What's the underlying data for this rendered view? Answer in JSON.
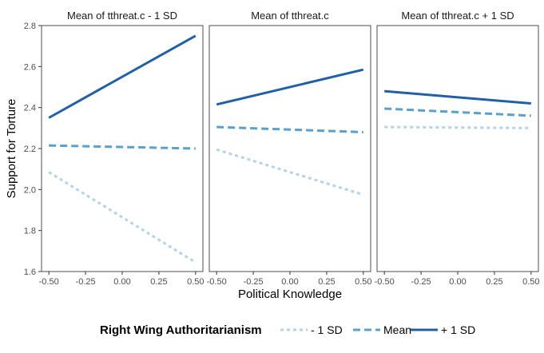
{
  "chart_data": {
    "type": "line",
    "xlabel": "Political Knowledge",
    "ylabel": "Support for Torture",
    "xlim": [
      -0.55,
      0.55
    ],
    "ylim": [
      1.6,
      2.8
    ],
    "x_ticks": [
      "-0.50",
      "-0.25",
      "0.00",
      "0.25",
      "0.50"
    ],
    "y_ticks": [
      "1.6",
      "1.8",
      "2.0",
      "2.2",
      "2.4",
      "2.6",
      "2.8"
    ],
    "legend": {
      "title": "Right Wing Authoritarianism",
      "position": "bottom",
      "entries": [
        "- 1 SD",
        "Mean",
        "+ 1 SD"
      ]
    },
    "colors": {
      "- 1 SD": "#b3d3e8",
      "Mean": "#5aa0cd",
      "+ 1 SD": "#2060a8"
    },
    "panels": [
      {
        "title": "Mean of tthreat.c - 1 SD",
        "x": [
          -0.5,
          0.5
        ],
        "series": [
          {
            "name": "- 1 SD",
            "values": [
              2.085,
              1.645
            ]
          },
          {
            "name": "Mean",
            "values": [
              2.215,
              2.2
            ]
          },
          {
            "name": "+ 1 SD",
            "values": [
              2.35,
              2.75
            ]
          }
        ]
      },
      {
        "title": "Mean of tthreat.c",
        "x": [
          -0.5,
          0.5
        ],
        "series": [
          {
            "name": "- 1 SD",
            "values": [
              2.195,
              1.975
            ]
          },
          {
            "name": "Mean",
            "values": [
              2.305,
              2.28
            ]
          },
          {
            "name": "+ 1 SD",
            "values": [
              2.415,
              2.585
            ]
          }
        ]
      },
      {
        "title": "Mean of tthreat.c + 1 SD",
        "x": [
          -0.5,
          0.5
        ],
        "series": [
          {
            "name": "- 1 SD",
            "values": [
              2.305,
              2.3
            ]
          },
          {
            "name": "Mean",
            "values": [
              2.395,
              2.36
            ]
          },
          {
            "name": "+ 1 SD",
            "values": [
              2.48,
              2.42
            ]
          }
        ]
      }
    ]
  }
}
